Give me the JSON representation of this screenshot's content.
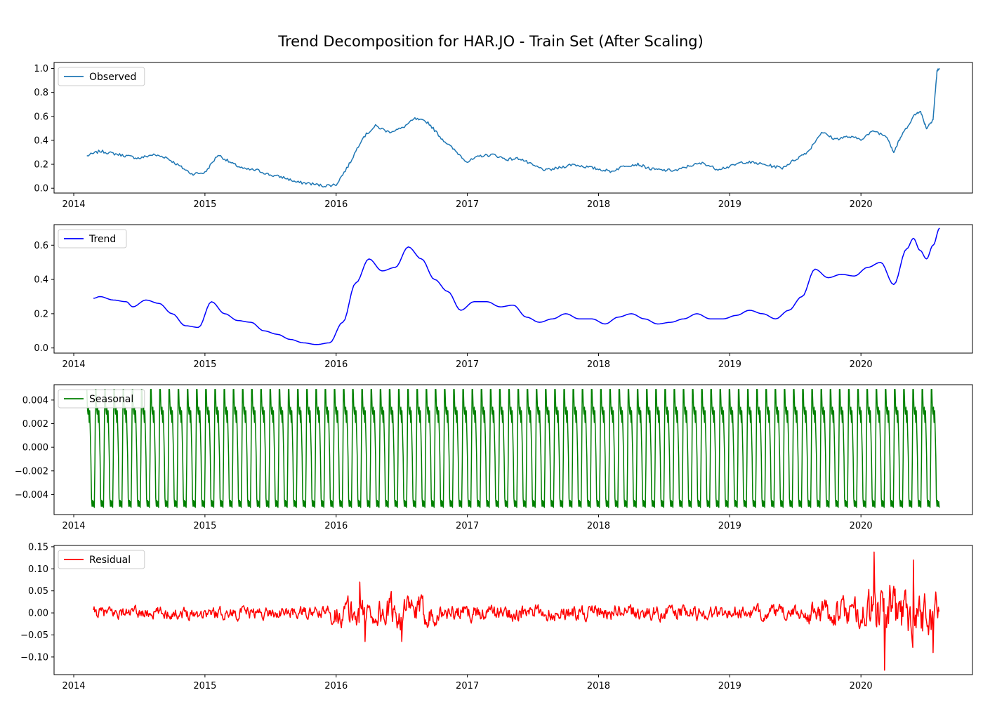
{
  "figure": {
    "title": "Trend Decomposition for HAR.JO - Train Set (After Scaling)"
  },
  "chart_data": [
    {
      "type": "line",
      "name": "observed",
      "legend": "Observed",
      "legend_position": "upper-left",
      "color": "#1f77b4",
      "grid": false,
      "xlim": [
        2013.85,
        2020.85
      ],
      "ylim": [
        -0.04,
        1.05
      ],
      "x_ticks": [
        "2014",
        "2015",
        "2016",
        "2017",
        "2018",
        "2019",
        "2020"
      ],
      "y_ticks": [
        "0.0",
        "0.2",
        "0.4",
        "0.6",
        "0.8",
        "1.0"
      ],
      "y_tick_values": [
        0,
        0.2,
        0.4,
        0.6,
        0.8,
        1.0
      ],
      "points": [
        [
          2014.1,
          0.27
        ],
        [
          2014.2,
          0.31
        ],
        [
          2014.3,
          0.29
        ],
        [
          2014.4,
          0.27
        ],
        [
          2014.5,
          0.25
        ],
        [
          2014.6,
          0.28
        ],
        [
          2014.7,
          0.26
        ],
        [
          2014.8,
          0.19
        ],
        [
          2014.9,
          0.12
        ],
        [
          2015.0,
          0.13
        ],
        [
          2015.1,
          0.28
        ],
        [
          2015.2,
          0.21
        ],
        [
          2015.3,
          0.16
        ],
        [
          2015.4,
          0.15
        ],
        [
          2015.5,
          0.11
        ],
        [
          2015.6,
          0.09
        ],
        [
          2015.7,
          0.05
        ],
        [
          2015.8,
          0.04
        ],
        [
          2015.9,
          0.02
        ],
        [
          2016.0,
          0.03
        ],
        [
          2016.1,
          0.2
        ],
        [
          2016.2,
          0.42
        ],
        [
          2016.3,
          0.52
        ],
        [
          2016.4,
          0.47
        ],
        [
          2016.5,
          0.5
        ],
        [
          2016.6,
          0.58
        ],
        [
          2016.7,
          0.55
        ],
        [
          2016.8,
          0.42
        ],
        [
          2016.9,
          0.32
        ],
        [
          2017.0,
          0.22
        ],
        [
          2017.1,
          0.27
        ],
        [
          2017.2,
          0.28
        ],
        [
          2017.3,
          0.24
        ],
        [
          2017.4,
          0.25
        ],
        [
          2017.5,
          0.19
        ],
        [
          2017.6,
          0.15
        ],
        [
          2017.7,
          0.17
        ],
        [
          2017.8,
          0.2
        ],
        [
          2017.9,
          0.18
        ],
        [
          2018.0,
          0.16
        ],
        [
          2018.1,
          0.14
        ],
        [
          2018.2,
          0.19
        ],
        [
          2018.3,
          0.2
        ],
        [
          2018.4,
          0.16
        ],
        [
          2018.5,
          0.15
        ],
        [
          2018.6,
          0.15
        ],
        [
          2018.7,
          0.19
        ],
        [
          2018.8,
          0.21
        ],
        [
          2018.9,
          0.16
        ],
        [
          2019.0,
          0.18
        ],
        [
          2019.1,
          0.22
        ],
        [
          2019.2,
          0.21
        ],
        [
          2019.3,
          0.19
        ],
        [
          2019.4,
          0.17
        ],
        [
          2019.5,
          0.24
        ],
        [
          2019.6,
          0.31
        ],
        [
          2019.7,
          0.47
        ],
        [
          2019.8,
          0.41
        ],
        [
          2019.9,
          0.43
        ],
        [
          2020.0,
          0.41
        ],
        [
          2020.1,
          0.48
        ],
        [
          2020.2,
          0.43
        ],
        [
          2020.25,
          0.3
        ],
        [
          2020.3,
          0.42
        ],
        [
          2020.4,
          0.6
        ],
        [
          2020.45,
          0.65
        ],
        [
          2020.5,
          0.5
        ],
        [
          2020.55,
          0.58
        ],
        [
          2020.58,
          0.98
        ],
        [
          2020.6,
          1.0
        ]
      ]
    },
    {
      "type": "line",
      "name": "trend",
      "legend": "Trend",
      "legend_position": "upper-left",
      "color": "#0000ff",
      "grid": false,
      "xlim": [
        2013.85,
        2020.85
      ],
      "ylim": [
        -0.03,
        0.72
      ],
      "x_ticks": [
        "2014",
        "2015",
        "2016",
        "2017",
        "2018",
        "2019",
        "2020"
      ],
      "y_ticks": [
        "0.0",
        "0.2",
        "0.4",
        "0.6"
      ],
      "y_tick_values": [
        0,
        0.2,
        0.4,
        0.6
      ],
      "points": [
        [
          2014.15,
          0.29
        ],
        [
          2014.2,
          0.3
        ],
        [
          2014.3,
          0.28
        ],
        [
          2014.4,
          0.27
        ],
        [
          2014.45,
          0.24
        ],
        [
          2014.55,
          0.28
        ],
        [
          2014.65,
          0.26
        ],
        [
          2014.75,
          0.2
        ],
        [
          2014.85,
          0.13
        ],
        [
          2014.95,
          0.12
        ],
        [
          2015.05,
          0.27
        ],
        [
          2015.15,
          0.2
        ],
        [
          2015.25,
          0.16
        ],
        [
          2015.35,
          0.15
        ],
        [
          2015.45,
          0.1
        ],
        [
          2015.55,
          0.08
        ],
        [
          2015.65,
          0.05
        ],
        [
          2015.75,
          0.03
        ],
        [
          2015.85,
          0.02
        ],
        [
          2015.95,
          0.03
        ],
        [
          2016.05,
          0.15
        ],
        [
          2016.15,
          0.38
        ],
        [
          2016.25,
          0.52
        ],
        [
          2016.35,
          0.45
        ],
        [
          2016.45,
          0.47
        ],
        [
          2016.55,
          0.59
        ],
        [
          2016.65,
          0.52
        ],
        [
          2016.75,
          0.4
        ],
        [
          2016.85,
          0.33
        ],
        [
          2016.95,
          0.22
        ],
        [
          2017.05,
          0.27
        ],
        [
          2017.15,
          0.27
        ],
        [
          2017.25,
          0.24
        ],
        [
          2017.35,
          0.25
        ],
        [
          2017.45,
          0.18
        ],
        [
          2017.55,
          0.15
        ],
        [
          2017.65,
          0.17
        ],
        [
          2017.75,
          0.2
        ],
        [
          2017.85,
          0.17
        ],
        [
          2017.95,
          0.17
        ],
        [
          2018.05,
          0.14
        ],
        [
          2018.15,
          0.18
        ],
        [
          2018.25,
          0.2
        ],
        [
          2018.35,
          0.17
        ],
        [
          2018.45,
          0.14
        ],
        [
          2018.55,
          0.15
        ],
        [
          2018.65,
          0.17
        ],
        [
          2018.75,
          0.2
        ],
        [
          2018.85,
          0.17
        ],
        [
          2018.95,
          0.17
        ],
        [
          2019.05,
          0.19
        ],
        [
          2019.15,
          0.22
        ],
        [
          2019.25,
          0.2
        ],
        [
          2019.35,
          0.17
        ],
        [
          2019.45,
          0.22
        ],
        [
          2019.55,
          0.3
        ],
        [
          2019.65,
          0.46
        ],
        [
          2019.75,
          0.41
        ],
        [
          2019.85,
          0.43
        ],
        [
          2019.95,
          0.42
        ],
        [
          2020.05,
          0.47
        ],
        [
          2020.15,
          0.5
        ],
        [
          2020.25,
          0.37
        ],
        [
          2020.35,
          0.58
        ],
        [
          2020.4,
          0.64
        ],
        [
          2020.45,
          0.57
        ],
        [
          2020.5,
          0.52
        ],
        [
          2020.55,
          0.6
        ],
        [
          2020.6,
          0.7
        ]
      ]
    },
    {
      "type": "line",
      "name": "seasonal",
      "legend": "Seasonal",
      "legend_position": "upper-left",
      "color": "#008000",
      "grid": false,
      "xlim": [
        2013.85,
        2020.85
      ],
      "ylim": [
        -0.0057,
        0.0053
      ],
      "x_ticks": [
        "2014",
        "2015",
        "2016",
        "2017",
        "2018",
        "2019",
        "2020"
      ],
      "y_ticks": [
        "0.004",
        "0.002",
        "0.000",
        "−0.002",
        "−0.004"
      ],
      "y_tick_values": [
        0.004,
        0.002,
        0,
        -0.002,
        -0.004
      ],
      "x_start": 2014.1,
      "x_end": 2020.6,
      "period_years": 0.07,
      "cycle_values": [
        0.0049,
        0.0033,
        0.0028,
        0.0034,
        0.0021,
        0.0031,
        0.0012,
        -0.0008,
        -0.0043,
        -0.005,
        -0.0045,
        -0.005,
        -0.0046,
        -0.0051,
        -0.0012,
        0.0049
      ]
    },
    {
      "type": "line",
      "name": "residual",
      "legend": "Residual",
      "legend_position": "upper-left",
      "color": "#ff0000",
      "grid": false,
      "xlim": [
        2013.85,
        2020.85
      ],
      "ylim": [
        -0.14,
        0.153
      ],
      "x_ticks": [
        "2014",
        "2015",
        "2016",
        "2017",
        "2018",
        "2019",
        "2020"
      ],
      "y_ticks": [
        "0.15",
        "0.10",
        "0.05",
        "0.00",
        "−0.05",
        "−0.10"
      ],
      "y_tick_values": [
        0.15,
        0.1,
        0.05,
        0,
        -0.05,
        -0.1
      ],
      "x_start": 2014.15,
      "x_end": 2020.6,
      "samples_per_year": 200,
      "amplitude_profile": [
        [
          2014.15,
          0.018
        ],
        [
          2015.9,
          0.018
        ],
        [
          2016.1,
          0.05
        ],
        [
          2016.6,
          0.05
        ],
        [
          2016.8,
          0.025
        ],
        [
          2019.5,
          0.02
        ],
        [
          2019.7,
          0.04
        ],
        [
          2020.0,
          0.04
        ],
        [
          2020.1,
          0.09
        ],
        [
          2020.6,
          0.07
        ]
      ],
      "marked_points": [
        [
          2016.18,
          0.07
        ],
        [
          2016.22,
          -0.065
        ],
        [
          2016.5,
          -0.065
        ],
        [
          2020.1,
          0.138
        ],
        [
          2020.18,
          -0.13
        ],
        [
          2020.4,
          0.12
        ],
        [
          2020.55,
          -0.09
        ]
      ]
    }
  ]
}
